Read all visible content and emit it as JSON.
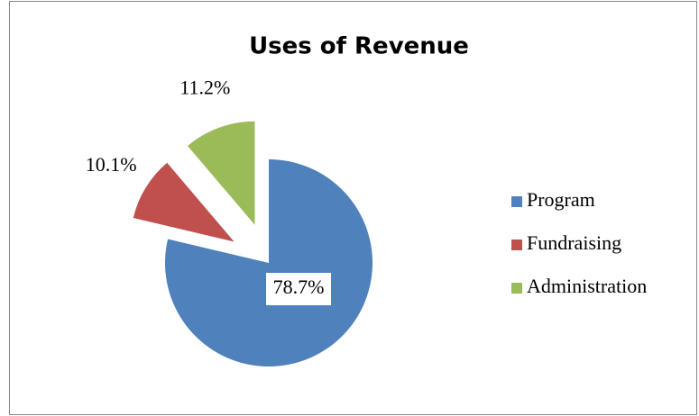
{
  "chart_data": {
    "type": "pie",
    "title": "Uses of Revenue",
    "categories": [
      "Program",
      "Fundraising",
      "Administration"
    ],
    "values": [
      78.7,
      10.1,
      11.2
    ],
    "value_labels": [
      "78.7%",
      "10.1%",
      "11.2%"
    ],
    "colors": [
      "#4f81bd",
      "#c0504d",
      "#9bbb59"
    ],
    "legend": "right"
  }
}
